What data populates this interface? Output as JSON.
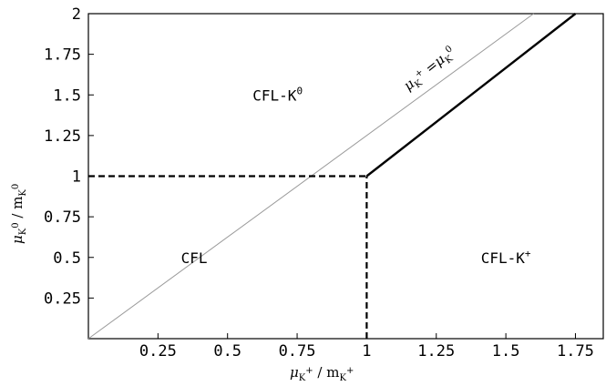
{
  "chart_data": {
    "type": "line",
    "xlim": [
      0,
      1.85
    ],
    "ylim": [
      0,
      2
    ],
    "grid": false,
    "legend": "none",
    "x_ticks": [
      "0.25",
      "0.5",
      "0.75",
      "1",
      "1.25",
      "1.5",
      "1.75"
    ],
    "y_ticks": [
      "0.25",
      "0.5",
      "0.75",
      "1",
      "1.25",
      "1.5",
      "1.75",
      "2"
    ],
    "xlabel": {
      "mu": "μ",
      "mu_sub": "K",
      "mu_sup": "+",
      "sep": " /",
      "m": " m",
      "m_sub": "K",
      "m_sup": "+"
    },
    "ylabel": {
      "mu": "μ",
      "mu_sub": "K",
      "mu_sup": "0",
      "sep": " /",
      "m": " m",
      "m_sub": "K",
      "m_sup": "0"
    },
    "series": [
      {
        "style": "thin-gray",
        "points": [
          [
            0,
            0
          ],
          [
            1.6,
            2
          ]
        ]
      },
      {
        "style": "solid-bold",
        "points": [
          [
            1,
            1
          ],
          [
            1.75,
            2
          ]
        ]
      },
      {
        "style": "dashed-bold",
        "points": [
          [
            0,
            1
          ],
          [
            1,
            1
          ]
        ]
      },
      {
        "style": "dashed-bold",
        "points": [
          [
            1,
            0
          ],
          [
            1,
            1
          ]
        ]
      }
    ],
    "regions": [
      {
        "label": "CFL",
        "x": 0.38,
        "y": 0.5
      },
      {
        "label": "CFL-K",
        "sup": "0",
        "x": 0.68,
        "y": 1.5
      },
      {
        "label": "CFL-K",
        "sup": "+",
        "x": 1.5,
        "y": 0.5
      }
    ],
    "annotation": {
      "a": "μ",
      "a_sub": "K",
      "a_sup": "+",
      "eq": " =",
      "b": "μ",
      "b_sub": "K",
      "b_sup": "0"
    }
  }
}
